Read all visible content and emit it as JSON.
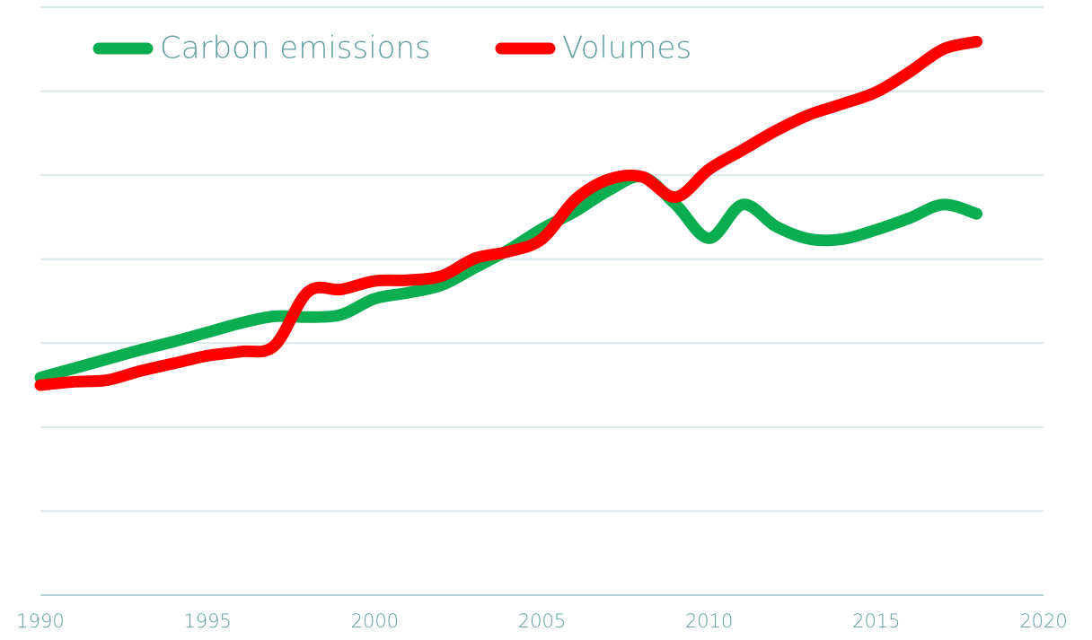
{
  "chart_data": {
    "type": "line",
    "x": [
      1990,
      1991,
      1992,
      1993,
      1994,
      1995,
      1996,
      1997,
      1998,
      1999,
      2000,
      2001,
      2002,
      2003,
      2004,
      2005,
      2006,
      2007,
      2008,
      2009,
      2010,
      2011,
      2012,
      2013,
      2014,
      2015,
      2016,
      2017,
      2018
    ],
    "series": [
      {
        "name": "Carbon emissions",
        "color": "#0aad4f",
        "values": [
          2.59,
          2.7,
          2.81,
          2.92,
          3.02,
          3.13,
          3.24,
          3.32,
          3.31,
          3.34,
          3.53,
          3.6,
          3.69,
          3.9,
          4.11,
          4.36,
          4.57,
          4.82,
          4.98,
          4.65,
          4.25,
          4.65,
          4.39,
          4.24,
          4.24,
          4.35,
          4.49,
          4.65,
          4.54
        ]
      },
      {
        "name": "Volumes",
        "color": "#ff0000",
        "values": [
          2.5,
          2.54,
          2.56,
          2.67,
          2.76,
          2.85,
          2.9,
          2.97,
          3.61,
          3.64,
          3.74,
          3.75,
          3.8,
          4.01,
          4.09,
          4.24,
          4.71,
          4.95,
          4.98,
          4.74,
          5.07,
          5.3,
          5.53,
          5.72,
          5.85,
          5.99,
          6.23,
          6.5,
          6.59
        ]
      }
    ],
    "xlim": [
      1990,
      2020
    ],
    "xticks": [
      1990,
      1995,
      2000,
      2005,
      2010,
      2015,
      2020
    ],
    "ylim": [
      0,
      7
    ],
    "yticks": [
      0,
      1,
      2,
      3,
      4,
      5,
      6,
      7
    ],
    "grid": true,
    "legend": "top-left"
  }
}
